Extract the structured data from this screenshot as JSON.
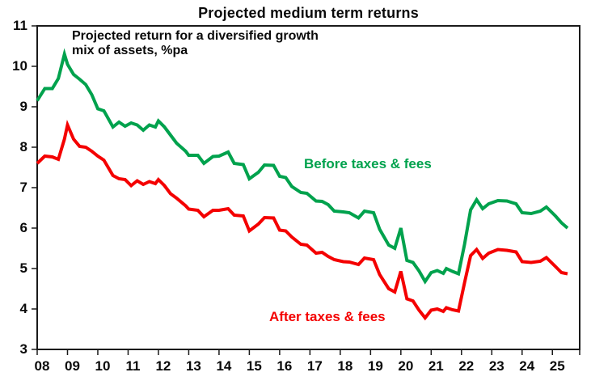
{
  "chart_data": {
    "type": "line",
    "title": "Projected medium term returns",
    "annotation": [
      "Projected return for a diversified growth",
      "mix of assets, %pa"
    ],
    "x_axis": {
      "range": [
        2008,
        2025.9
      ],
      "tick_years": [
        2008,
        2009,
        2010,
        2011,
        2012,
        2013,
        2014,
        2015,
        2016,
        2017,
        2018,
        2019,
        2020,
        2021,
        2022,
        2023,
        2024,
        2025
      ],
      "tick_labels": [
        "08",
        "09",
        "10",
        "11",
        "12",
        "13",
        "14",
        "15",
        "16",
        "17",
        "18",
        "19",
        "20",
        "21",
        "22",
        "23",
        "24",
        "25"
      ]
    },
    "y_axis": {
      "range": [
        3,
        11
      ],
      "ticks": [
        3,
        4,
        5,
        6,
        7,
        8,
        9,
        10,
        11
      ],
      "tick_labels": [
        "3",
        "4",
        "5",
        "6",
        "7",
        "8",
        "9",
        "10",
        "11"
      ]
    },
    "grid": "off",
    "legend_position": "on-chart",
    "x": [
      2008.0,
      2008.25,
      2008.5,
      2008.7,
      2008.9,
      2009.0,
      2009.2,
      2009.4,
      2009.6,
      2009.8,
      2010.0,
      2010.2,
      2010.5,
      2010.7,
      2010.9,
      2011.1,
      2011.3,
      2011.5,
      2011.7,
      2011.9,
      2012.0,
      2012.2,
      2012.4,
      2012.6,
      2012.9,
      2013.0,
      2013.3,
      2013.5,
      2013.8,
      2014.0,
      2014.3,
      2014.5,
      2014.8,
      2015.0,
      2015.3,
      2015.5,
      2015.8,
      2016.0,
      2016.2,
      2016.4,
      2016.7,
      2016.9,
      2017.2,
      2017.4,
      2017.6,
      2017.8,
      2018.1,
      2018.3,
      2018.6,
      2018.8,
      2019.1,
      2019.3,
      2019.6,
      2019.8,
      2020.0,
      2020.2,
      2020.4,
      2020.6,
      2020.8,
      2021.0,
      2021.2,
      2021.4,
      2021.5,
      2021.7,
      2021.9,
      2022.1,
      2022.3,
      2022.5,
      2022.7,
      2022.9,
      2023.2,
      2023.5,
      2023.8,
      2024.0,
      2024.3,
      2024.6,
      2024.8,
      2025.1,
      2025.3,
      2025.5
    ],
    "series": [
      {
        "name": "Before taxes & fees",
        "color": "#00A24D",
        "values": [
          9.15,
          9.45,
          9.45,
          9.7,
          10.3,
          10.05,
          9.8,
          9.68,
          9.55,
          9.3,
          8.95,
          8.9,
          8.5,
          8.62,
          8.52,
          8.6,
          8.55,
          8.42,
          8.55,
          8.5,
          8.65,
          8.5,
          8.3,
          8.1,
          7.9,
          7.8,
          7.8,
          7.6,
          7.77,
          7.78,
          7.88,
          7.6,
          7.57,
          7.22,
          7.38,
          7.56,
          7.55,
          7.28,
          7.25,
          7.03,
          6.88,
          6.86,
          6.67,
          6.66,
          6.58,
          6.42,
          6.4,
          6.38,
          6.25,
          6.42,
          6.38,
          5.97,
          5.58,
          5.5,
          6.0,
          5.2,
          5.15,
          4.94,
          4.68,
          4.9,
          4.95,
          4.88,
          5.0,
          4.93,
          4.87,
          5.6,
          6.45,
          6.7,
          6.48,
          6.6,
          6.68,
          6.67,
          6.6,
          6.38,
          6.36,
          6.42,
          6.52,
          6.3,
          6.13,
          6.0
        ]
      },
      {
        "name": "After taxes & fees",
        "color": "#F40000",
        "values": [
          7.6,
          7.78,
          7.76,
          7.7,
          8.2,
          8.55,
          8.2,
          8.02,
          8.0,
          7.9,
          7.78,
          7.68,
          7.3,
          7.22,
          7.2,
          7.05,
          7.17,
          7.08,
          7.15,
          7.1,
          7.2,
          7.05,
          6.85,
          6.74,
          6.55,
          6.47,
          6.44,
          6.28,
          6.44,
          6.44,
          6.48,
          6.32,
          6.3,
          5.93,
          6.1,
          6.26,
          6.25,
          5.95,
          5.93,
          5.78,
          5.6,
          5.58,
          5.38,
          5.4,
          5.3,
          5.22,
          5.17,
          5.16,
          5.1,
          5.26,
          5.22,
          4.85,
          4.5,
          4.42,
          4.93,
          4.25,
          4.2,
          3.97,
          3.78,
          3.97,
          4.0,
          3.94,
          4.03,
          3.98,
          3.95,
          4.65,
          5.32,
          5.47,
          5.25,
          5.38,
          5.47,
          5.45,
          5.41,
          5.17,
          5.15,
          5.18,
          5.27,
          5.05,
          4.9,
          4.87
        ]
      }
    ]
  }
}
